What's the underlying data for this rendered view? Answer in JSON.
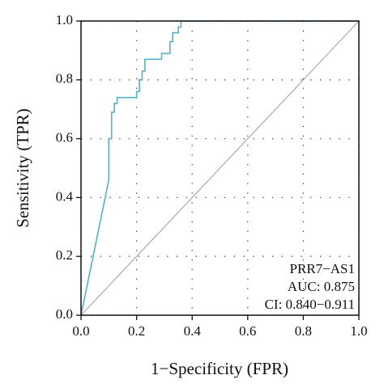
{
  "chart_data": {
    "type": "line",
    "x_label": "1−Specificity (FPR)",
    "y_label": "Sensitivity (TPR)",
    "x": [
      0,
      0.1,
      0.1,
      0.11,
      0.11,
      0.12,
      0.12,
      0.13,
      0.13,
      0.2,
      0.2,
      0.21,
      0.21,
      0.22,
      0.22,
      0.23,
      0.23,
      0.29,
      0.29,
      0.32,
      0.32,
      0.33,
      0.33,
      0.35,
      0.35,
      0.36,
      0.36,
      1.0
    ],
    "series": [
      {
        "name": "PRR7−AS1",
        "color": "#4fb3c9",
        "values": [
          0,
          0.46,
          0.6,
          0.6,
          0.69,
          0.69,
          0.72,
          0.72,
          0.74,
          0.74,
          0.76,
          0.76,
          0.8,
          0.8,
          0.83,
          0.83,
          0.87,
          0.87,
          0.89,
          0.89,
          0.93,
          0.93,
          0.96,
          0.96,
          0.98,
          0.98,
          1.0,
          1.0
        ]
      }
    ],
    "annotations": [
      "AUC: 0.875",
      "CI: 0.840−0.911"
    ],
    "xlim": [
      0,
      1
    ],
    "ylim": [
      0,
      1
    ],
    "xticks": [
      {
        "value": 0,
        "label": "0.0"
      },
      0.2,
      0.4,
      0.6,
      0.8,
      {
        "value": 1,
        "label": "1.0"
      }
    ],
    "yticks": [
      {
        "value": 0,
        "label": "0.0"
      },
      0.2,
      0.4,
      0.6,
      0.8,
      {
        "value": 1,
        "label": "1.0"
      }
    ],
    "grid": true
  }
}
